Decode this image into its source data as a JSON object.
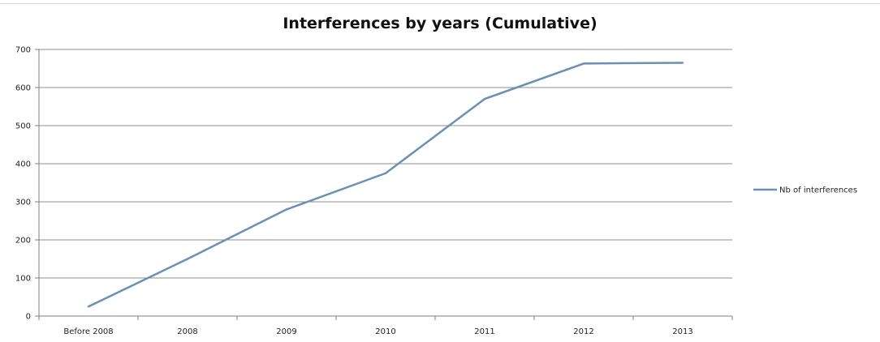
{
  "chart_data": {
    "type": "line",
    "title": "Interferences by years (Cumulative)",
    "xlabel": "",
    "ylabel": "",
    "categories": [
      "Before 2008",
      "2008",
      "2009",
      "2010",
      "2011",
      "2012",
      "2013"
    ],
    "series": [
      {
        "name": "Nb of interferences",
        "values": [
          25,
          150,
          280,
          375,
          570,
          663,
          665
        ],
        "color": "#6b8fb5"
      }
    ],
    "ylim": [
      0,
      700
    ],
    "yticks": [
      "0",
      "100",
      "200",
      "300",
      "400",
      "500",
      "600",
      "700"
    ],
    "grid": true,
    "legend": "right"
  }
}
